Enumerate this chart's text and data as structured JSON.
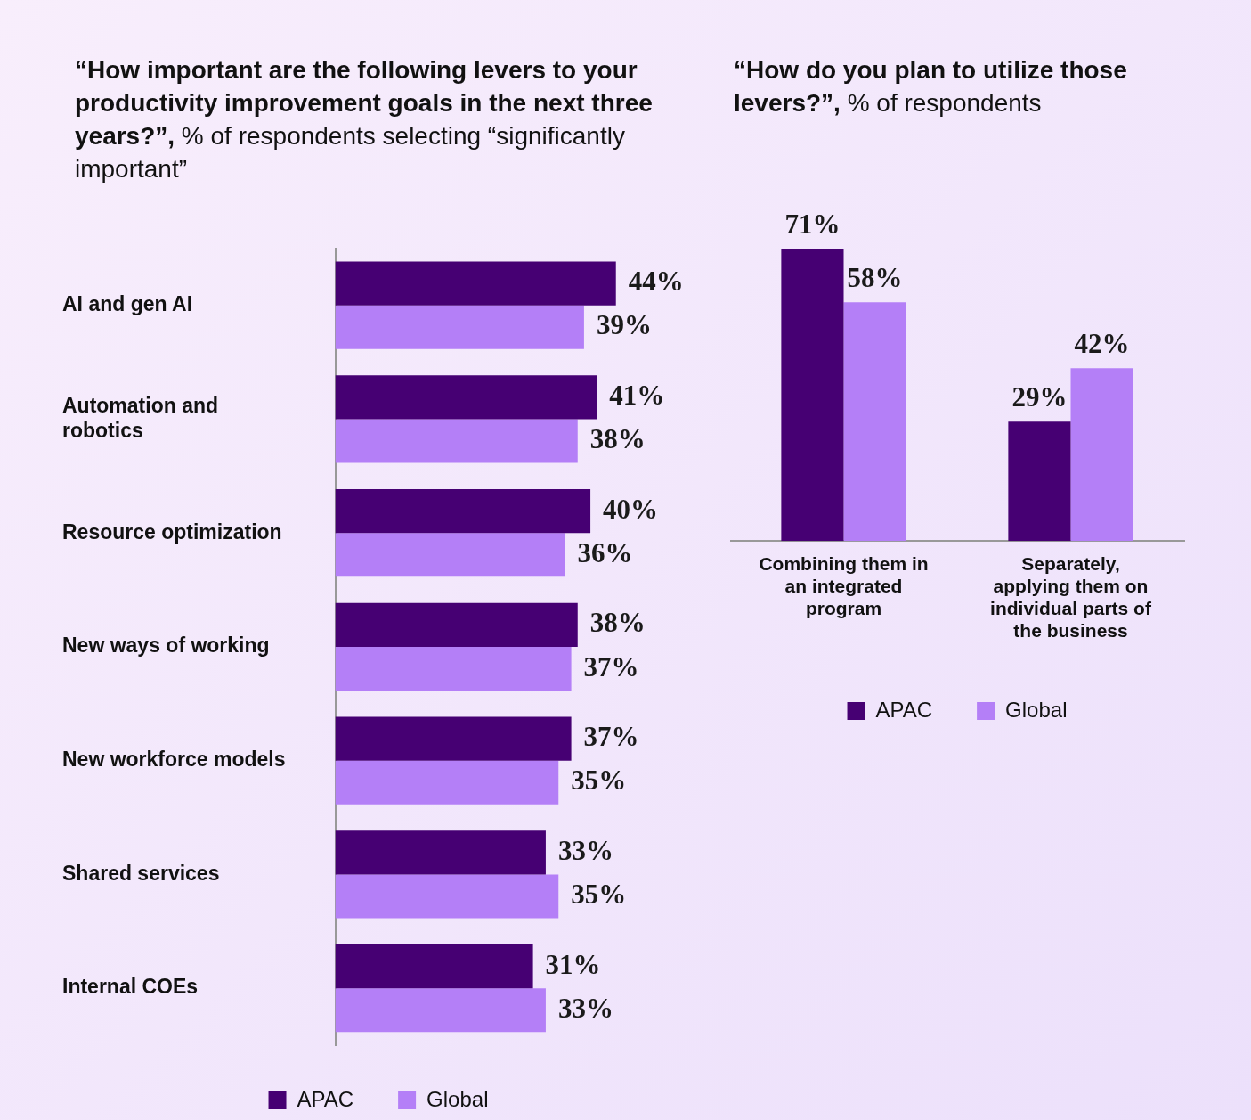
{
  "chart_data": [
    {
      "type": "bar",
      "orientation": "horizontal",
      "title": "“How important are the following levers to your productivity improvement goals in the next three years?”,",
      "subtitle": "% of respondents selecting “significantly important”",
      "categories": [
        "AI and gen AI",
        "Automation and robotics",
        "Resource optimization",
        "New ways of working",
        "New workforce models",
        "Shared services",
        "Internal COEs"
      ],
      "series": [
        {
          "name": "APAC",
          "color": "#460073",
          "values": [
            44,
            41,
            40,
            38,
            37,
            33,
            31
          ],
          "value_labels": [
            "44%",
            "41%",
            "40%",
            "38%",
            "37%",
            "33%",
            "31%"
          ]
        },
        {
          "name": "Global",
          "color": "#b47ff7",
          "values": [
            39,
            38,
            36,
            37,
            35,
            35,
            33
          ],
          "value_labels": [
            "39%",
            "38%",
            "36%",
            "37%",
            "35%",
            "35%",
            "33%"
          ]
        }
      ],
      "legend": "bottom",
      "tick_labels": "y"
    },
    {
      "type": "bar",
      "title": "“How do you plan to utilize those levers?”,",
      "subtitle": "% of respondents",
      "categories": [
        "Combining them in an integrated program",
        "Separately, applying them on individual parts of the business"
      ],
      "series": [
        {
          "name": "APAC",
          "color": "#460073",
          "values": [
            71,
            29
          ],
          "value_labels": [
            "71%",
            "29%"
          ]
        },
        {
          "name": "Global",
          "color": "#b47ff7",
          "values": [
            58,
            42
          ],
          "value_labels": [
            "58%",
            "42%"
          ]
        }
      ],
      "legend": "bottom",
      "tick_labels": "x"
    }
  ]
}
